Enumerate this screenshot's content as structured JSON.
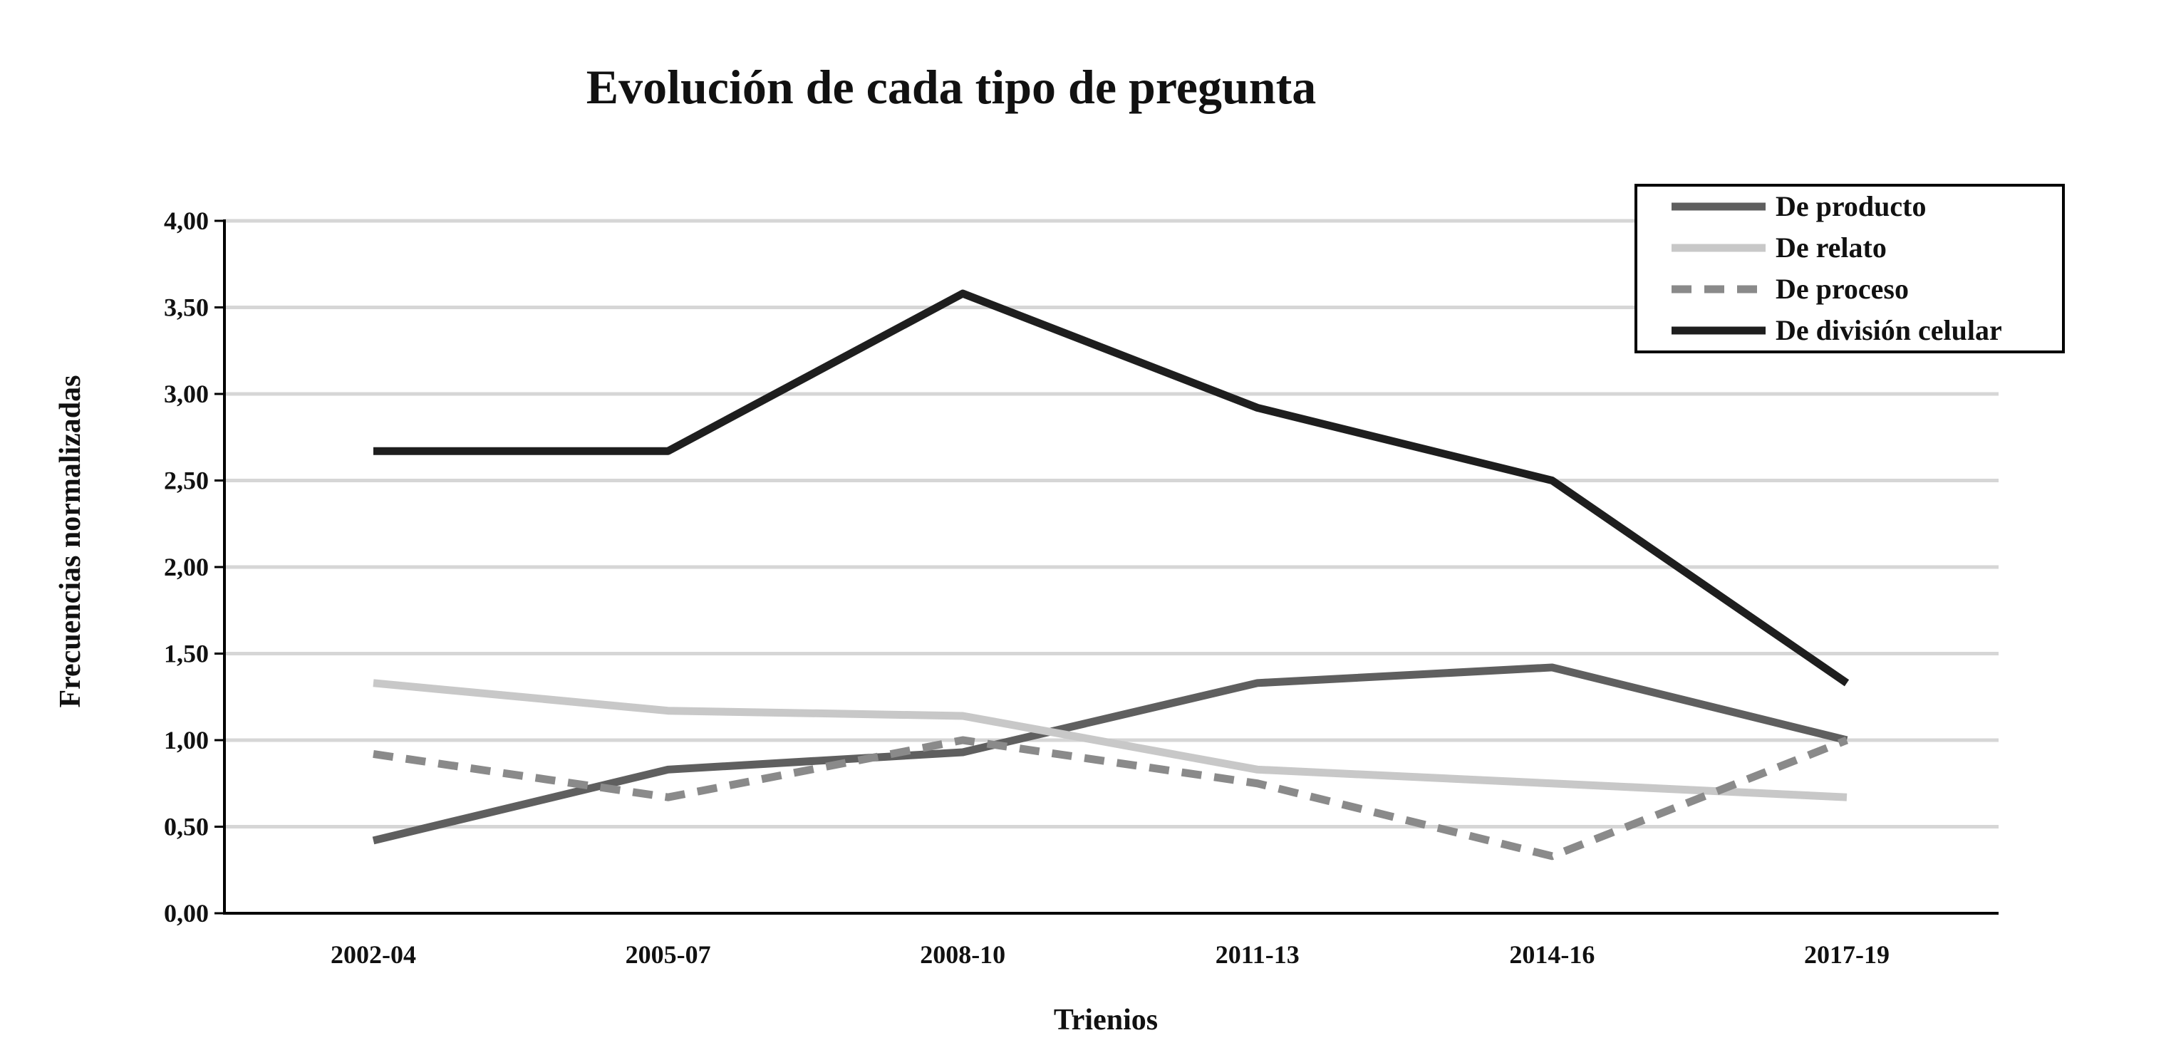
{
  "chart_data": {
    "type": "line",
    "title": "Evolución de cada tipo de pregunta",
    "xlabel": "Trienios",
    "ylabel": "Frecuencias normalizadas",
    "categories": [
      "2002-04",
      "2005-07",
      "2008-10",
      "2011-13",
      "2014-16",
      "2017-19"
    ],
    "ylim": [
      0,
      4
    ],
    "yticks": [
      "0,00",
      "0,50",
      "1,00",
      "1,50",
      "2,00",
      "2,50",
      "3,00",
      "3,50",
      "4,00"
    ],
    "grid": true,
    "legend_position": "top-right",
    "series": [
      {
        "name": "De producto",
        "values": [
          0.42,
          0.83,
          0.93,
          1.33,
          1.42,
          1.0
        ],
        "color": "#5f5f5f",
        "dash": false
      },
      {
        "name": "De relato",
        "values": [
          1.33,
          1.17,
          1.14,
          0.83,
          0.75,
          0.67
        ],
        "color": "#c8c8c8",
        "dash": false
      },
      {
        "name": "De proceso",
        "values": [
          0.92,
          0.67,
          1.0,
          0.75,
          0.33,
          1.0
        ],
        "color": "#8a8a8a",
        "dash": true
      },
      {
        "name": "De división celular",
        "values": [
          2.67,
          2.67,
          3.58,
          2.92,
          2.5,
          1.33
        ],
        "color": "#1e1e1e",
        "dash": false
      }
    ]
  }
}
